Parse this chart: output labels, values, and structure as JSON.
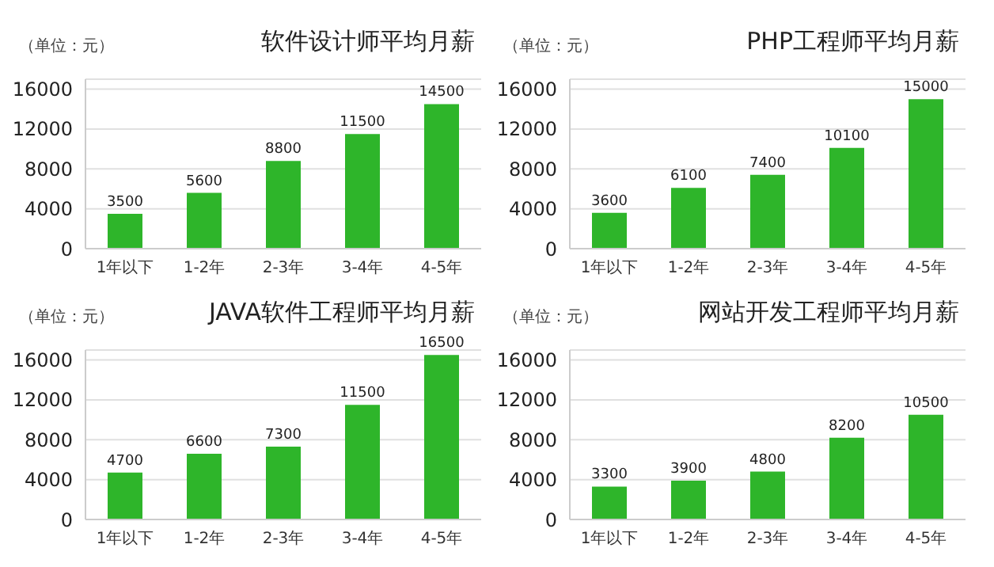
{
  "chart_data": [
    {
      "type": "bar",
      "title": "软件设计师平均月薪",
      "ylabel": "（单位：元）",
      "categories": [
        "1年以下",
        "1-2年",
        "2-3年",
        "3-4年",
        "4-5年"
      ],
      "values": [
        3500,
        5600,
        8800,
        11500,
        14500
      ],
      "color": "#2eb52a",
      "ylim": [
        0,
        17000
      ],
      "yticks": [
        0,
        4000,
        8000,
        12000,
        16000
      ],
      "grid": "y",
      "data_labels": true
    },
    {
      "type": "bar",
      "title": "PHP工程师平均月薪",
      "ylabel": "（单位：元）",
      "categories": [
        "1年以下",
        "1-2年",
        "2-3年",
        "3-4年",
        "4-5年"
      ],
      "values": [
        3600,
        6100,
        7400,
        10100,
        15000
      ],
      "color": "#2eb52a",
      "ylim": [
        0,
        17000
      ],
      "yticks": [
        0,
        4000,
        8000,
        12000,
        16000
      ],
      "grid": "y",
      "data_labels": true
    },
    {
      "type": "bar",
      "title": "JAVA软件工程师平均月薪",
      "ylabel": "（单位：元）",
      "categories": [
        "1年以下",
        "1-2年",
        "2-3年",
        "3-4年",
        "4-5年"
      ],
      "values": [
        4700,
        6600,
        7300,
        11500,
        16500
      ],
      "color": "#2eb52a",
      "ylim": [
        0,
        17000
      ],
      "yticks": [
        0,
        4000,
        8000,
        12000,
        16000
      ],
      "grid": "y",
      "data_labels": true
    },
    {
      "type": "bar",
      "title": "网站开发工程师平均月薪",
      "ylabel": "（单位：元）",
      "categories": [
        "1年以下",
        "1-2年",
        "2-3年",
        "3-4年",
        "4-5年"
      ],
      "values": [
        3300,
        3900,
        4800,
        8200,
        10500
      ],
      "color": "#2eb52a",
      "ylim": [
        0,
        17000
      ],
      "yticks": [
        0,
        4000,
        8000,
        12000,
        16000
      ],
      "grid": "y",
      "data_labels": true
    }
  ]
}
